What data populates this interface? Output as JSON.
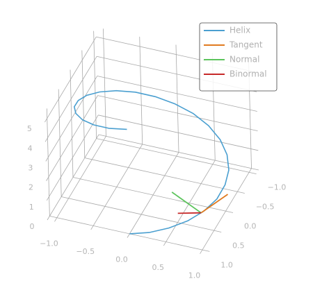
{
  "chart_data": {
    "type": "line3d",
    "series": [
      {
        "name": "Helix",
        "color": "#4a9fd0",
        "x": [
          0,
          0.26,
          0.5,
          0.71,
          0.87,
          0.97,
          1,
          0.97,
          0.87,
          0.71,
          0.5,
          0.26,
          0,
          -0.26,
          -0.5,
          -0.71,
          -0.87,
          -0.97,
          -1,
          -0.97,
          -0.87,
          -0.71,
          -0.5,
          -0.26,
          0
        ],
        "y": [
          1,
          0.97,
          0.87,
          0.71,
          0.5,
          0.26,
          0,
          -0.26,
          -0.5,
          -0.71,
          -0.87,
          -0.97,
          -1,
          -0.97,
          -0.87,
          -0.71,
          -0.5,
          -0.26,
          0,
          0.26,
          0.5,
          0.71,
          0.87,
          0.97,
          1
        ],
        "z": [
          0,
          0.22,
          0.45,
          0.67,
          0.89,
          1.11,
          1.34,
          1.56,
          1.78,
          2.0,
          2.23,
          2.45,
          2.67,
          2.89,
          3.12,
          3.34,
          3.56,
          3.78,
          4.01,
          4.23,
          4.45,
          4.67,
          4.9,
          5.12,
          5.34
        ]
      },
      {
        "name": "Tangent",
        "color": "#e07a1f",
        "x": [
          0.841,
          1.087
        ],
        "y": [
          0.54,
          0.156
        ],
        "z": [
          0.85,
          1.24
        ]
      },
      {
        "name": "Normal",
        "color": "#5cc45c",
        "x": [
          0.841,
          0.336
        ],
        "y": [
          0.54,
          0.216
        ],
        "z": [
          0.85,
          0.85
        ]
      },
      {
        "name": "Binormal",
        "color": "#c62828",
        "x": [
          0.841,
          0.63
        ],
        "y": [
          0.54,
          0.868
        ],
        "z": [
          0.85,
          1.305
        ]
      }
    ],
    "xlim": [
      -1.1,
      1.1
    ],
    "ylim": [
      -1.1,
      1.1
    ],
    "zlim": [
      0,
      5.5
    ],
    "xticks": [
      {
        "value": -1,
        "label": "−1.0"
      },
      {
        "value": -0.5,
        "label": "−0.5"
      },
      {
        "value": 0,
        "label": "0.0"
      },
      {
        "value": 0.5,
        "label": "0.5"
      },
      {
        "value": 1,
        "label": "1.0"
      }
    ],
    "yticks": [
      {
        "value": -1,
        "label": "−1.0"
      },
      {
        "value": -0.5,
        "label": "−0.5"
      },
      {
        "value": 0,
        "label": "0.0"
      },
      {
        "value": 0.5,
        "label": "0.5"
      },
      {
        "value": 1,
        "label": "1.0"
      }
    ],
    "zticks": [
      0,
      1,
      2,
      3,
      4,
      5
    ],
    "grid": true,
    "legend": "upper right"
  }
}
